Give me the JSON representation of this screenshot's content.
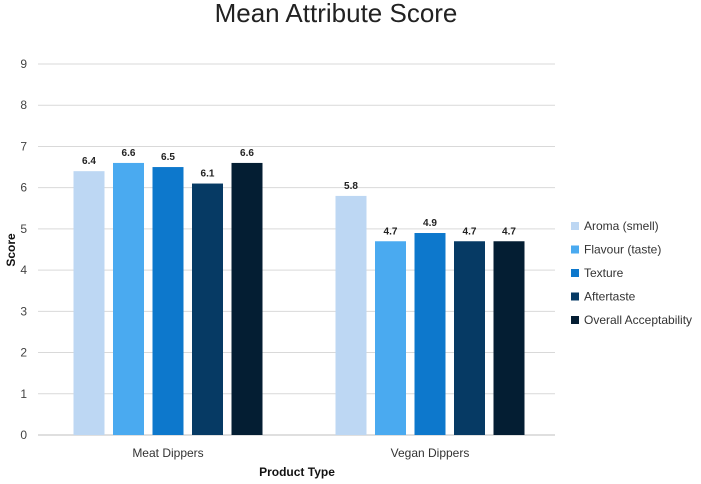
{
  "chart_data": {
    "type": "bar",
    "title": "Mean Attribute Score",
    "xlabel": "Product Type",
    "ylabel": "Score",
    "categories": [
      "Meat Dippers",
      "Vegan Dippers"
    ],
    "series": [
      {
        "name": "Aroma (smell)",
        "color": "#bdd7f3",
        "values": [
          6.4,
          5.8
        ]
      },
      {
        "name": "Flavour (taste)",
        "color": "#4aaaf0",
        "values": [
          6.6,
          4.7
        ]
      },
      {
        "name": "Texture",
        "color": "#0d78cc",
        "values": [
          6.5,
          4.9
        ]
      },
      {
        "name": "Aftertaste",
        "color": "#063a64",
        "values": [
          6.1,
          4.7
        ]
      },
      {
        "name": "Overall Acceptability",
        "color": "#041e33",
        "values": [
          6.6,
          4.7
        ]
      }
    ],
    "ylim": [
      0,
      9
    ],
    "yticks": [
      0,
      1,
      2,
      3,
      4,
      5,
      6,
      7,
      8,
      9
    ],
    "grid": true,
    "legend": "right"
  }
}
